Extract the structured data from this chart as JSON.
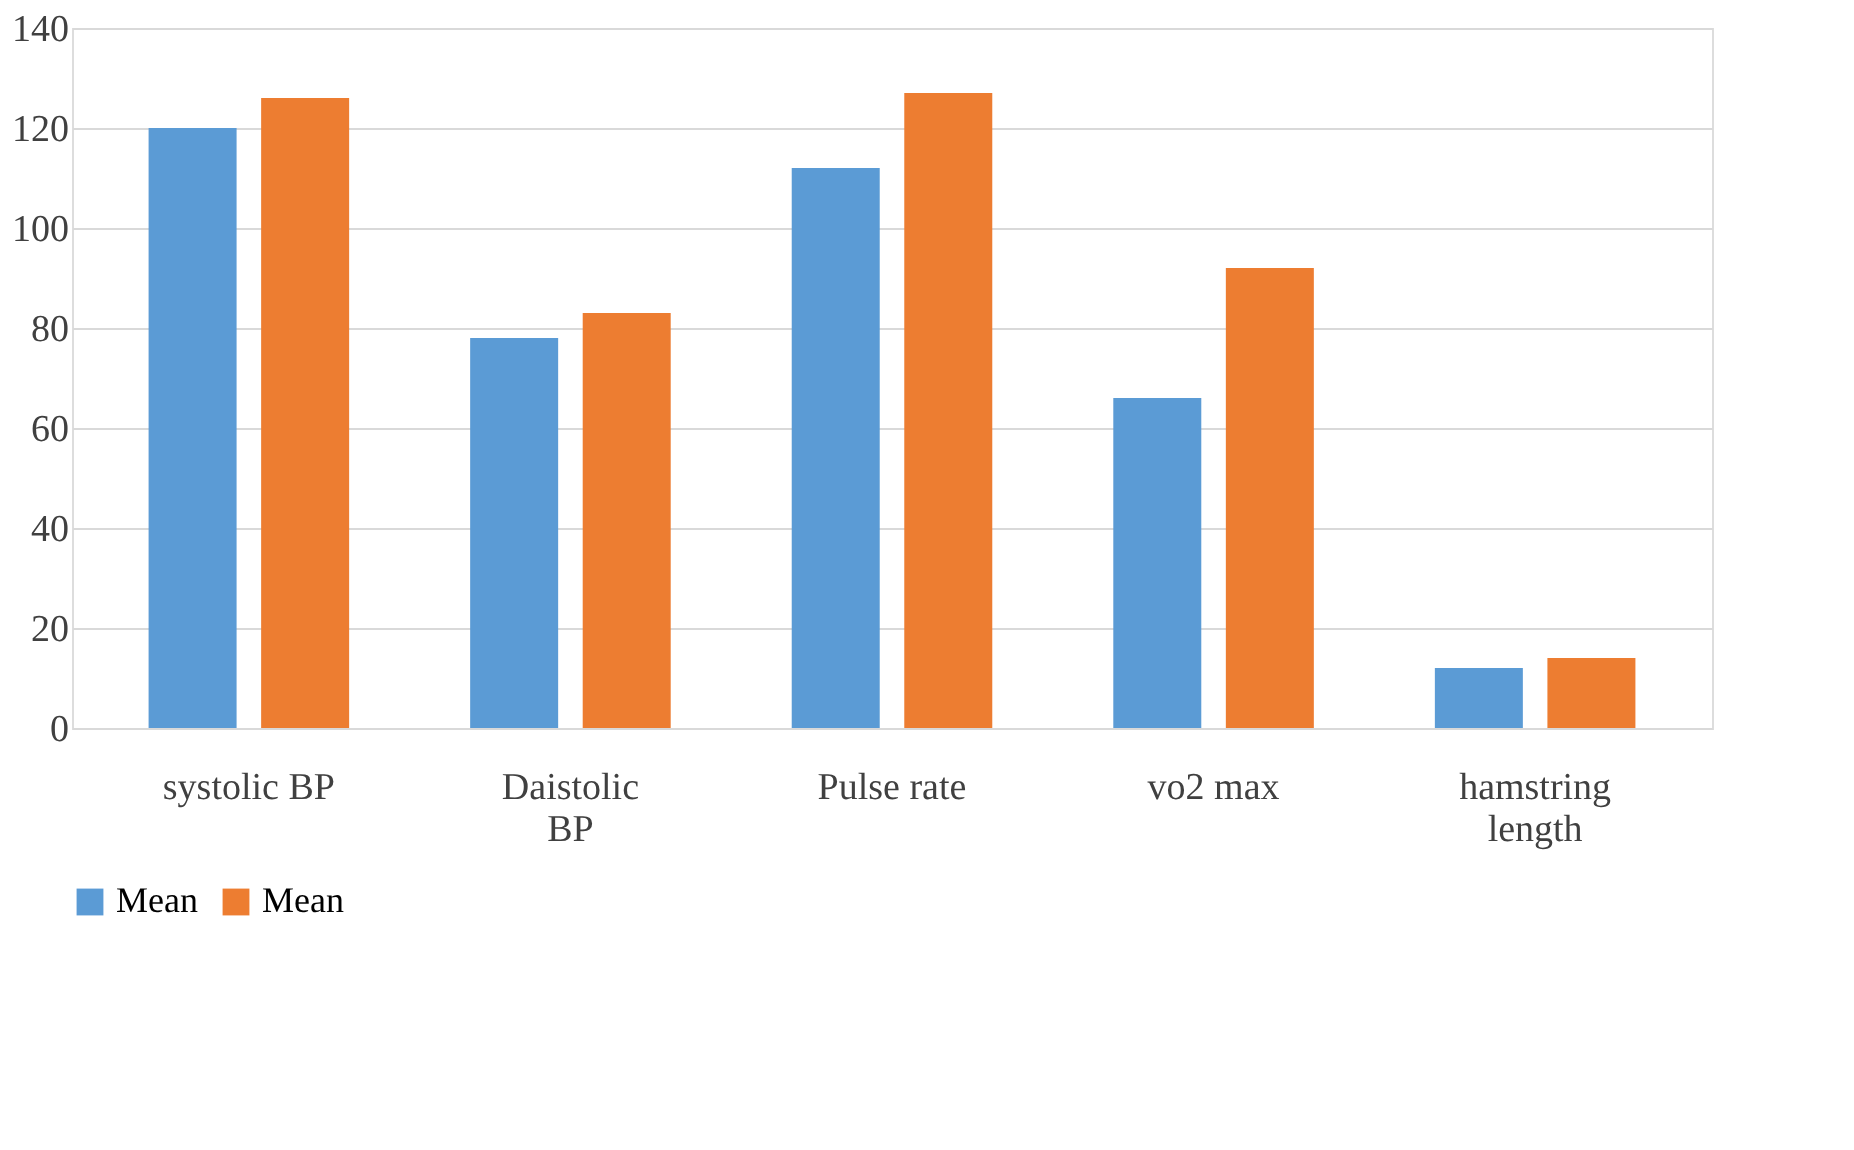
{
  "chart_data": {
    "type": "bar",
    "categories": [
      "systolic BP",
      "Daistolic BP",
      "Pulse rate",
      "vo2 max",
      "hamstring length"
    ],
    "series": [
      {
        "name": "Mean",
        "color": "#5b9bd5",
        "values": [
          120,
          78,
          112,
          66,
          12
        ]
      },
      {
        "name": "Mean",
        "color": "#ed7d31",
        "values": [
          126,
          83,
          127,
          92,
          14
        ]
      }
    ],
    "ylim": [
      0,
      140
    ],
    "yticks": [
      0,
      20,
      40,
      60,
      80,
      100,
      120,
      140
    ],
    "grid": "y",
    "legend": "bottom"
  }
}
